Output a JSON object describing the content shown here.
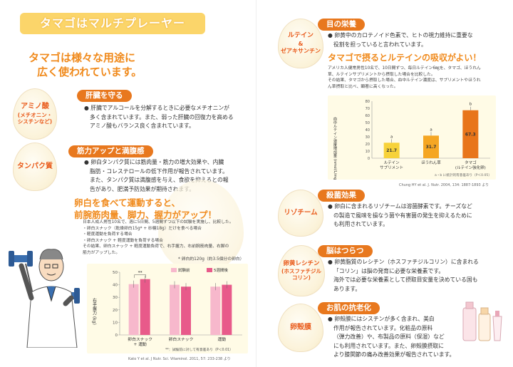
{
  "left": {
    "banner": "タマゴはマルチプレーヤー",
    "headline1": "タマゴは様々な用途に",
    "headline2": "広く使われています。",
    "sections": [
      {
        "egg": [
          "アミノ酸",
          "(メチオニン・",
          "シスチンなど)"
        ],
        "pill": "肝臓を守る",
        "lines": [
          "● 肝臓でアルコールを分解するときに必要なメチオニンが",
          "多く含まれています。また、弱った肝臓の回復力を高める",
          "アミノ酸もバランス良く含まれています。"
        ]
      },
      {
        "egg": [
          "タンパク質"
        ],
        "pill": "筋力アップと満腹感",
        "lines": [
          "● 卵白タンパク質には筋肉量・筋力の増大効果や、内臓",
          "脂肪・コレステロールの低下作用が報告されています。",
          "また、タンパク質は満腹感を与え、食欲を抑えるとの報",
          "告があり、肥満予防効果が期待されます。"
        ]
      }
    ],
    "study_title1": "卵白を食べて運動すると、",
    "study_title2": "前腕筋肉量、脚力、握力がアップ！",
    "study_lines": [
      "日本人成人男性10名で、週に5日間、5週間ずつ以下の試験を実施し、比較した。",
      "・卵白スナック（乾燥卵白15g* + 砂糖18g）だけを食べる場合",
      "・軽度運動を負荷する場合",
      "・卵白スナック + 軽度運動を負荷する場合",
      "その結果、卵白スナック + 軽度運動負荷で、右手握力、右前腕筋肉量、右脚の",
      "筋力がアップした。"
    ],
    "study_note": "* 卵白約120g（約3.5個分の卵白）",
    "chart_cite": "Kato Y et al. J Nutr. Sci. Vitaminol. 2011, 57: 233-238 より"
  },
  "right": {
    "sections": [
      {
        "egg": [
          "ルテイン",
          "&",
          "ゼアキサンチン"
        ],
        "pill": "目の栄養",
        "lines": [
          "● 卵黄中のカロテノイド色素で、ヒトの視力維持に重要な",
          "役割を担っていると言われています。"
        ]
      },
      {
        "egg": [
          "リゾチーム"
        ],
        "pill": "殺菌効果",
        "lines": [
          "● 卵白に含まれるリゾチームは溶菌酵素です。チーズなど",
          "の製造で風味を損なう菌や有害菌の発生を抑えるために",
          "も利用されています。"
        ]
      },
      {
        "egg": [
          "卵黄レシチン",
          "(ホスファチジル",
          "コリン)"
        ],
        "pill": "脳はつらつ",
        "lines": [
          "● 卵黄脂質のレシチン（ホスファチジルコリン）に含まれる",
          "「コリン」は脳の発育に必要な栄養素です。",
          "海外では必要な栄養素として摂取目安量を決めている国も",
          "あります。"
        ]
      },
      {
        "egg": [
          "卵殻膜"
        ],
        "pill": "お肌の抗老化",
        "lines": [
          "● 卵殻膜にはシスチンが多く含まれ、美白",
          "作用が報告されています。化粧品の原料",
          "（弾力改善）や、布製品の原料（保湿）など",
          "にも利用されています。また、卵殻膜摂取に",
          "より膝関節の痛み改善効果が報告されています。"
        ]
      }
    ],
    "lutein_title": "タマゴで摂るとルテインの吸収がよい！",
    "lutein_lines": [
      "アメリカ人健常男性10名で、10日間ずつ、毎日ルテイン6㎎を、タマゴ、ほうれん",
      "草、ルテインサプリメントから摂取した場合を比較した。",
      "その結果、タマゴから摂取した場合、血中ルテイン濃度は、サプリメントやほうれ",
      "ん草摂取と比べ、顕著に高くなった。"
    ],
    "chart_note": "a・b に統計的有意差あり（P＜0.05）",
    "chart_cite": "Chung HY et al. J. Nutr. 2004, 134: 1887-1893 より"
  },
  "chart_data": [
    {
      "type": "bar",
      "ylabel": "右手握力 (kg)",
      "ylim": [
        0,
        50
      ],
      "yticks": [
        0,
        10,
        20,
        30,
        40,
        50
      ],
      "categories": [
        "卵白スナック + 運動",
        "卵白スナック",
        "運動"
      ],
      "series": [
        {
          "name": "試験前",
          "color": "#f7b8cc",
          "values": [
            40.5,
            40,
            38.5
          ]
        },
        {
          "name": "5週間後",
          "color": "#e85a8a",
          "values": [
            44.5,
            38.5,
            40
          ]
        }
      ],
      "annotation": "**",
      "footnote": "**：試験前に対して有意差あり（P＜0.01）"
    },
    {
      "type": "bar",
      "ylabel": "血中ルテイン濃度増加量 (nmol/L/mg投与量)",
      "ylim": [
        0,
        80
      ],
      "yticks": [
        0,
        10,
        20,
        30,
        40,
        50,
        60,
        70,
        80
      ],
      "categories": [
        "ルテイン サプリメント",
        "ほうれん草",
        "タマゴ (ルテイン強化卵)"
      ],
      "values": [
        21.7,
        31.7,
        67.3
      ],
      "value_labels": [
        "21.7",
        "31.7",
        "67.3"
      ],
      "significance": [
        "a",
        "a",
        "b"
      ],
      "colors": [
        "#f7d23a",
        "#f5a623",
        "#e8751a"
      ]
    }
  ]
}
